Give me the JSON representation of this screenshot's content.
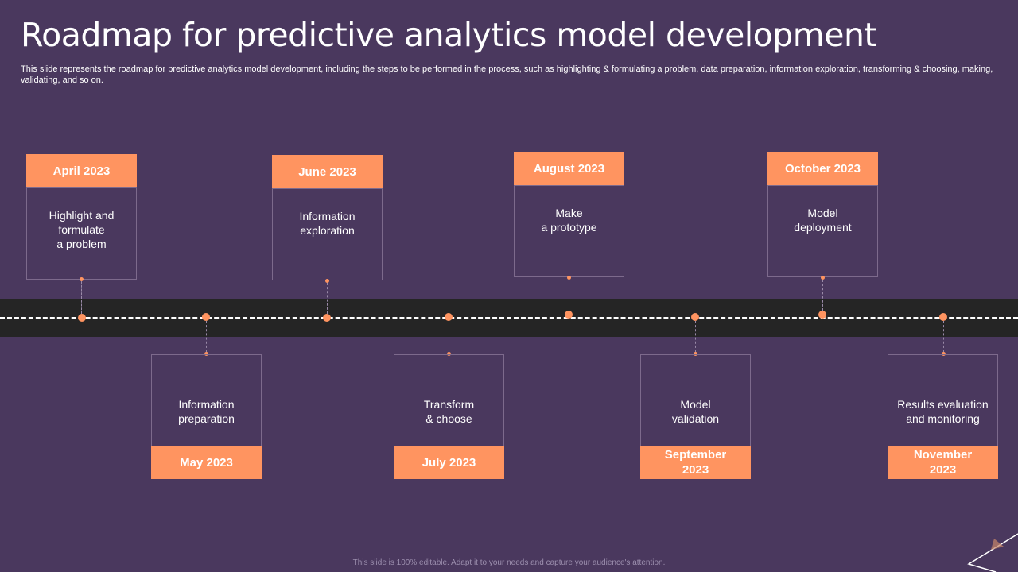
{
  "slide": {
    "title": "Roadmap for predictive analytics model development",
    "subtitle": "This slide represents the roadmap for predictive analytics model development, including the steps to be performed in the process, such as highlighting & formulating a problem, data preparation, information exploration, transforming & choosing, making, validating, and so on.",
    "footer": "This slide is 100% editable.  Adapt it to your needs and capture your audience's attention."
  },
  "milestones": [
    {
      "date": "April 2023",
      "text": "Highlight  and\nformulate\na problem"
    },
    {
      "date": "May 2023",
      "text": "Information\npreparation"
    },
    {
      "date": "June 2023",
      "text": "Information\nexploration"
    },
    {
      "date": "July 2023",
      "text": "Transform\n& choose"
    },
    {
      "date": "August 2023",
      "text": "Make\na prototype"
    },
    {
      "date": "September\n2023",
      "text": "Model\nvalidation"
    },
    {
      "date": "October 2023",
      "text": "Model\ndeployment"
    },
    {
      "date": "November\n2023",
      "text": "Results evaluation\nand monitoring"
    }
  ],
  "colors": {
    "background": "#4a385e",
    "accent": "#ff9460",
    "road": "#252525",
    "text": "#ffffff"
  }
}
